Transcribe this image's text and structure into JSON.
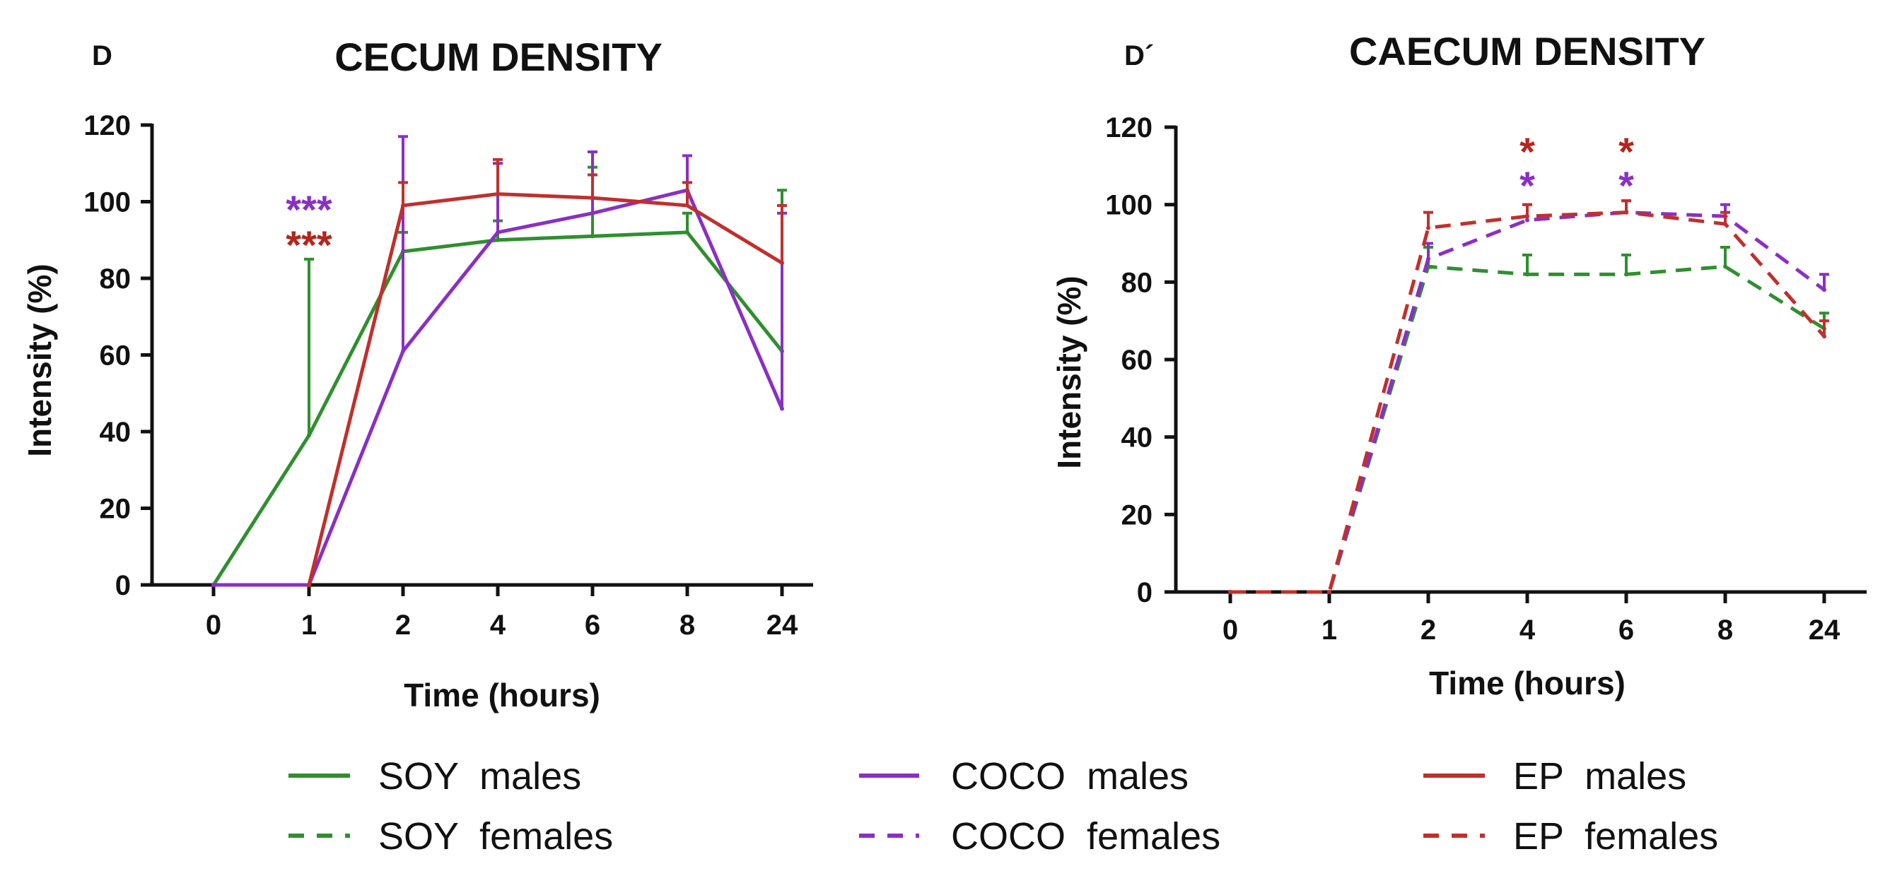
{
  "chart_data": [
    {
      "type": "line",
      "panel": "D",
      "title": "CECUM DENSITY",
      "xlabel": "Time (hours)",
      "ylabel": "Intensity (%)",
      "categories": [
        "0",
        "1",
        "2",
        "4",
        "6",
        "8",
        "24"
      ],
      "ylim": [
        0,
        120
      ],
      "yticks": [
        "0",
        "20",
        "40",
        "60",
        "80",
        "100",
        "120"
      ],
      "series": [
        {
          "name": "SOY males",
          "color": "#2f8f2f",
          "dash": "solid",
          "values": [
            0,
            39,
            87,
            90,
            91,
            92,
            61
          ],
          "errors": [
            0,
            46,
            5,
            5,
            18,
            5,
            42
          ]
        },
        {
          "name": "COCO males",
          "color": "#8a2fc4",
          "dash": "solid",
          "values": [
            0,
            0,
            61,
            92,
            97,
            103,
            46
          ],
          "errors": [
            0,
            0,
            56,
            18,
            16,
            9,
            51
          ]
        },
        {
          "name": "EP males",
          "color": "#c0302c",
          "dash": "solid",
          "values": [
            null,
            0,
            99,
            102,
            101,
            99,
            84
          ],
          "errors": [
            0,
            0,
            6,
            9,
            6,
            6,
            15
          ]
        }
      ],
      "annotations": [
        {
          "text": "***",
          "at": "1",
          "color": "#8a2fc4",
          "row": 1
        },
        {
          "text": "***",
          "at": "1",
          "color": "#b3261e",
          "row": 2
        }
      ]
    },
    {
      "type": "line",
      "panel": "D´",
      "title": "CAECUM DENSITY",
      "xlabel": "Time (hours)",
      "ylabel": "Intensity (%)",
      "categories": [
        "0",
        "1",
        "2",
        "4",
        "6",
        "8",
        "24"
      ],
      "ylim": [
        0,
        120
      ],
      "yticks": [
        "0",
        "20",
        "40",
        "60",
        "80",
        "100",
        "120"
      ],
      "series": [
        {
          "name": "SOY females",
          "color": "#2f8f2f",
          "dash": "dashed",
          "values": [
            0,
            0,
            84,
            82,
            82,
            84,
            68
          ],
          "errors": [
            0,
            0,
            5,
            5,
            5,
            5,
            4
          ]
        },
        {
          "name": "COCO females",
          "color": "#8a2fc4",
          "dash": "dashed",
          "values": [
            0,
            0,
            86,
            96,
            98,
            97,
            78
          ],
          "errors": [
            0,
            0,
            4,
            4,
            3,
            3,
            4
          ]
        },
        {
          "name": "EP females",
          "color": "#c0302c",
          "dash": "dashed",
          "values": [
            0,
            0,
            94,
            97,
            98,
            95,
            66
          ],
          "errors": [
            0,
            0,
            4,
            3,
            3,
            3,
            4
          ]
        }
      ],
      "annotations": [
        {
          "text": "*",
          "at": "4",
          "color": "#b3261e",
          "row": 1
        },
        {
          "text": "*",
          "at": "4",
          "color": "#8a2fc4",
          "row": 2
        },
        {
          "text": "*",
          "at": "6",
          "color": "#b3261e",
          "row": 1
        },
        {
          "text": "*",
          "at": "6",
          "color": "#8a2fc4",
          "row": 2
        }
      ]
    }
  ],
  "legend": [
    {
      "label": "SOY  males",
      "color": "#2f8f2f",
      "dash": "solid"
    },
    {
      "label": "COCO  males",
      "color": "#8a2fc4",
      "dash": "solid"
    },
    {
      "label": "EP  males",
      "color": "#c0302c",
      "dash": "solid"
    },
    {
      "label": "SOY  females",
      "color": "#2f8f2f",
      "dash": "dashed"
    },
    {
      "label": "COCO  females",
      "color": "#8a2fc4",
      "dash": "dashed"
    },
    {
      "label": "EP  females",
      "color": "#c0302c",
      "dash": "dashed"
    }
  ]
}
